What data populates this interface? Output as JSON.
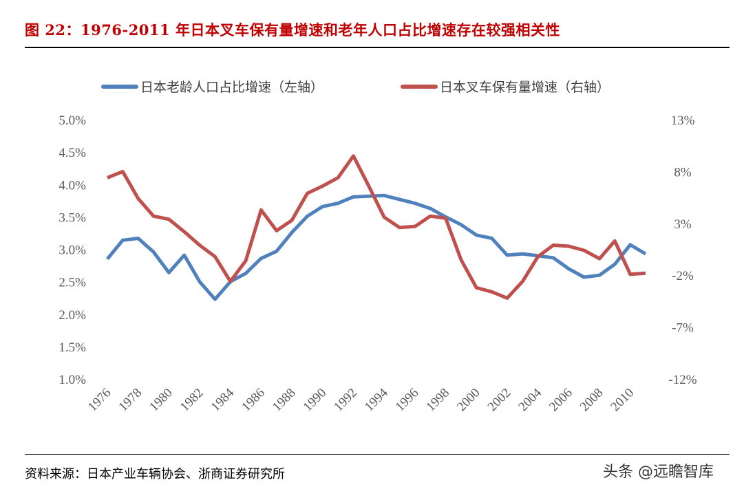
{
  "title": "图 22：1976-2011 年日本叉车保有量增速和老年人口占比增速存在较强相关性",
  "source": "资料来源：日本产业车辆协会、浙商证券研究所",
  "watermark": "头条 @远瞻智库",
  "chart_data": {
    "type": "line",
    "x": [
      1976,
      1977,
      1978,
      1979,
      1980,
      1981,
      1982,
      1983,
      1984,
      1985,
      1986,
      1987,
      1988,
      1989,
      1990,
      1991,
      1992,
      1993,
      1994,
      1995,
      1996,
      1997,
      1998,
      1999,
      2000,
      2001,
      2002,
      2003,
      2004,
      2005,
      2006,
      2007,
      2008,
      2009,
      2010,
      2011
    ],
    "x_tick_labels": [
      "1976",
      "1978",
      "1980",
      "1982",
      "1984",
      "1986",
      "1988",
      "1990",
      "1992",
      "1994",
      "1996",
      "1998",
      "2000",
      "2002",
      "2004",
      "2006",
      "2008",
      "2010"
    ],
    "y_left_ticks": [
      "5.0%",
      "4.5%",
      "4.0%",
      "3.5%",
      "3.0%",
      "2.5%",
      "2.0%",
      "1.5%",
      "1.0%"
    ],
    "y_right_ticks": [
      "13%",
      "8%",
      "3%",
      "-2%",
      "-7%",
      "-12%"
    ],
    "ylim_left": [
      1.0,
      5.0
    ],
    "ylim_right": [
      -12,
      13
    ],
    "grid": false,
    "legend_position": "top",
    "series": [
      {
        "name": "日本老龄人口占比增速（左轴）",
        "axis": "left",
        "color": "#4f81bd",
        "values": [
          2.85,
          3.14,
          3.17,
          2.96,
          2.64,
          2.91,
          2.5,
          2.23,
          2.5,
          2.63,
          2.86,
          2.97,
          3.26,
          3.51,
          3.66,
          3.71,
          3.81,
          3.82,
          3.83,
          3.77,
          3.71,
          3.63,
          3.5,
          3.38,
          3.22,
          3.17,
          2.91,
          2.93,
          2.9,
          2.87,
          2.7,
          2.57,
          2.6,
          2.77,
          3.07,
          2.93
        ]
      },
      {
        "name": "日本叉车保有量增速（右轴）",
        "axis": "right",
        "color": "#c0504d",
        "values": [
          7.4,
          8.0,
          5.4,
          3.7,
          3.4,
          2.2,
          0.9,
          -0.2,
          -2.6,
          -0.6,
          4.3,
          2.3,
          3.3,
          5.9,
          6.6,
          7.4,
          9.5,
          6.6,
          3.6,
          2.6,
          2.7,
          3.7,
          3.5,
          -0.5,
          -3.2,
          -3.6,
          -4.2,
          -2.6,
          -0.2,
          0.9,
          0.8,
          0.4,
          -0.4,
          1.3,
          -1.9,
          -1.8
        ]
      }
    ]
  }
}
